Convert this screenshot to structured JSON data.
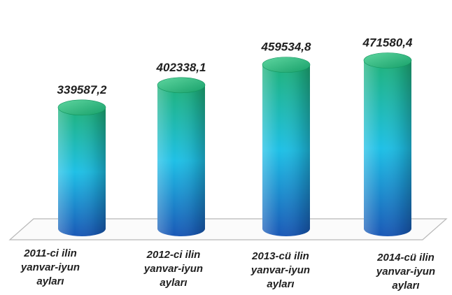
{
  "chart_data": {
    "type": "bar",
    "style": "3d-cylinder",
    "categories": [
      [
        "2011-ci ilin",
        "yanvar-iyun",
        "ayları"
      ],
      [
        "2012-ci ilin",
        "yanvar-iyun",
        "ayları"
      ],
      [
        "2013-cü ilin",
        "yanvar-iyun",
        "ayları"
      ],
      [
        "2014-cü ilin",
        "yanvar-iyun",
        "ayları"
      ]
    ],
    "values": [
      339587.2,
      402338.1,
      459534.8,
      471580.4
    ],
    "value_labels": [
      "339587,2",
      "402338,1",
      "459534,8",
      "471580,4"
    ],
    "title": "",
    "xlabel": "",
    "ylabel": "",
    "ylim": [
      0,
      500000
    ],
    "grid": false,
    "legend": "none",
    "colors": {
      "top": "#1fb27a",
      "middle": "#1fc0e6",
      "bottom": "#1a58b6",
      "floor_edge": "#b8b8b8"
    }
  }
}
